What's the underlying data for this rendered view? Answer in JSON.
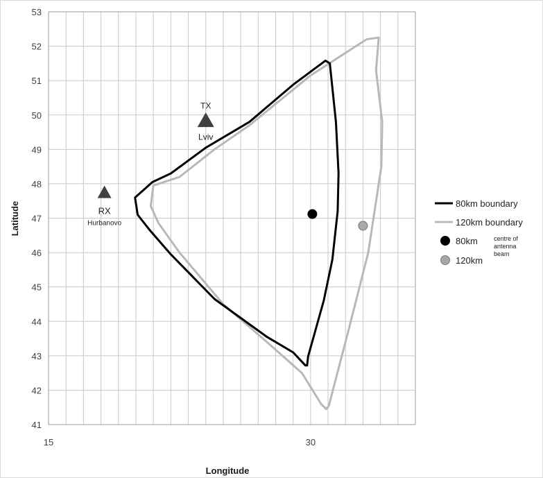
{
  "chart_data": {
    "type": "scatter",
    "title": "",
    "xlabel": "Longitude",
    "ylabel": "Latitude",
    "xlim": [
      15,
      36
    ],
    "ylim": [
      41,
      53
    ],
    "x_ticks": [
      "15",
      "30"
    ],
    "y_ticks": [
      "41",
      "42",
      "43",
      "44",
      "45",
      "46",
      "47",
      "48",
      "49",
      "50",
      "51",
      "52",
      "53"
    ],
    "grid": true,
    "legend_position": "right",
    "colors": {
      "boundary_80": "#000000",
      "boundary_120": "#b8b8b8",
      "marker_80": "#000000",
      "marker_120": "#a8a8a8",
      "station": "#404040",
      "grid": "#c8c8c8"
    },
    "series": [
      {
        "name": "80km boundary",
        "kind": "line",
        "points": [
          [
            29.8,
            42.72
          ],
          [
            29.86,
            42.98
          ],
          [
            30.2,
            43.6
          ],
          [
            30.75,
            44.6
          ],
          [
            31.25,
            45.8
          ],
          [
            31.55,
            47.2
          ],
          [
            31.6,
            48.3
          ],
          [
            31.45,
            49.8
          ],
          [
            31.1,
            51.5
          ],
          [
            30.85,
            51.58
          ],
          [
            29.0,
            50.88
          ],
          [
            26.5,
            49.8
          ],
          [
            24.0,
            49.05
          ],
          [
            22.0,
            48.3
          ],
          [
            20.95,
            48.05
          ],
          [
            19.95,
            47.6
          ],
          [
            20.1,
            47.1
          ],
          [
            20.8,
            46.65
          ],
          [
            22.0,
            45.95
          ],
          [
            24.5,
            44.65
          ],
          [
            27.5,
            43.55
          ],
          [
            29.0,
            43.1
          ],
          [
            29.7,
            42.72
          ],
          [
            29.8,
            42.72
          ]
        ]
      },
      {
        "name": "120km boundary",
        "kind": "line",
        "points": [
          [
            30.9,
            41.45
          ],
          [
            31.05,
            41.55
          ],
          [
            31.15,
            41.75
          ],
          [
            32.2,
            43.8
          ],
          [
            33.3,
            46.0
          ],
          [
            34.05,
            48.5
          ],
          [
            34.1,
            49.8
          ],
          [
            33.75,
            51.3
          ],
          [
            33.9,
            52.25
          ],
          [
            33.2,
            52.2
          ],
          [
            30.0,
            51.15
          ],
          [
            26.5,
            49.7
          ],
          [
            24.5,
            49.0
          ],
          [
            22.5,
            48.2
          ],
          [
            21.0,
            47.95
          ],
          [
            20.85,
            47.35
          ],
          [
            21.3,
            46.85
          ],
          [
            22.5,
            46.0
          ],
          [
            25.0,
            44.5
          ],
          [
            27.5,
            43.4
          ],
          [
            29.5,
            42.5
          ],
          [
            30.6,
            41.6
          ],
          [
            30.9,
            41.45
          ]
        ]
      },
      {
        "name": "80km",
        "kind": "point",
        "x": 30.1,
        "y": 47.12
      },
      {
        "name": "120km",
        "kind": "point",
        "x": 33.0,
        "y": 46.78
      }
    ],
    "stations": [
      {
        "label": "TX",
        "sublabel": "Lviv",
        "x": 24.0,
        "y": 49.82
      },
      {
        "label": "RX",
        "sublabel": "Hurbanovo",
        "x": 18.2,
        "y": 47.73
      }
    ],
    "legend": [
      {
        "label": "80km boundary",
        "symbol": "line",
        "color_key": "boundary_80"
      },
      {
        "label": "120km boundary",
        "symbol": "line",
        "color_key": "boundary_120"
      },
      {
        "label": "80km",
        "symbol": "dot",
        "color_key": "marker_80"
      },
      {
        "label": "120km",
        "symbol": "dot",
        "color_key": "marker_120"
      }
    ],
    "legend_note": [
      "centre of",
      "antenna",
      "beam"
    ]
  }
}
